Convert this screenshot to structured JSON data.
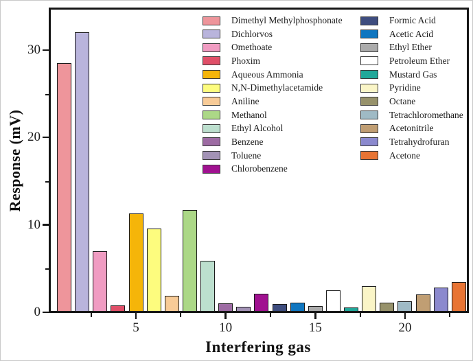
{
  "chart_data": {
    "type": "bar",
    "title": "",
    "xlabel": "Interfering gas",
    "ylabel": "Response (mV)",
    "xlim": [
      0.1,
      23.5
    ],
    "ylim": [
      0,
      35
    ],
    "x_major_ticks": [
      5,
      10,
      15,
      20
    ],
    "x_minor_ticks": [
      2.5,
      7.5,
      12.5,
      17.5,
      22.5
    ],
    "y_major_ticks": [
      0,
      10,
      20,
      30
    ],
    "y_minor_ticks": [
      5,
      15,
      25
    ],
    "grid": false,
    "legend_position": "upper-right-inside, two columns",
    "legend_columns": [
      12,
      11
    ],
    "bar_outline_color": "#1b1b1b",
    "categories": [
      1,
      2,
      3,
      4,
      5,
      6,
      7,
      8,
      9,
      10,
      11,
      12,
      13,
      14,
      15,
      16,
      17,
      18,
      19,
      20,
      21,
      22,
      23
    ],
    "series": [
      {
        "name": "Dimethyl Methylphosphonate",
        "value": 28.6,
        "color": "#EE959B"
      },
      {
        "name": "Dichlorvos",
        "value": 32.1,
        "color": "#B9B4DC"
      },
      {
        "name": "Omethoate",
        "value": 7.1,
        "color": "#F09CC2"
      },
      {
        "name": "Phoxim",
        "value": 0.9,
        "color": "#E04F68"
      },
      {
        "name": "Aqueous Ammonia",
        "value": 11.4,
        "color": "#F5B509"
      },
      {
        "name": "N,N-Dimethylacetamide",
        "value": 9.7,
        "color": "#FDFC7E"
      },
      {
        "name": "Aniline",
        "value": 2.0,
        "color": "#F8CB97"
      },
      {
        "name": "Methanol",
        "value": 11.8,
        "color": "#ACD887"
      },
      {
        "name": "Ethyl Alcohol",
        "value": 6.0,
        "color": "#BCDFCE"
      },
      {
        "name": "Benzene",
        "value": 1.1,
        "color": "#9D6BA3"
      },
      {
        "name": "Toluene",
        "value": 0.7,
        "color": "#A393B6"
      },
      {
        "name": "Chlorobenzene",
        "value": 2.2,
        "color": "#A01190"
      },
      {
        "name": "Formic Acid",
        "value": 1.0,
        "color": "#3E4D7F"
      },
      {
        "name": "Acetic Acid",
        "value": 1.2,
        "color": "#0F76C0"
      },
      {
        "name": "Ethyl Ether",
        "value": 0.8,
        "color": "#ABABAB"
      },
      {
        "name": "Petroleum Ether",
        "value": 2.6,
        "color": "#FFFFFF"
      },
      {
        "name": "Mustard Gas",
        "value": 0.6,
        "color": "#20A89A"
      },
      {
        "name": "Pyridine",
        "value": 3.1,
        "color": "#FAF5C7"
      },
      {
        "name": "Octane",
        "value": 1.2,
        "color": "#97926B"
      },
      {
        "name": "Tetrachloromethane",
        "value": 1.3,
        "color": "#9FBAC5"
      },
      {
        "name": "Acetonitrile",
        "value": 2.1,
        "color": "#C09E73"
      },
      {
        "name": "Tetrahydrofuran",
        "value": 2.9,
        "color": "#8B89CE"
      },
      {
        "name": "Acetone",
        "value": 3.5,
        "color": "#E87434"
      }
    ]
  }
}
